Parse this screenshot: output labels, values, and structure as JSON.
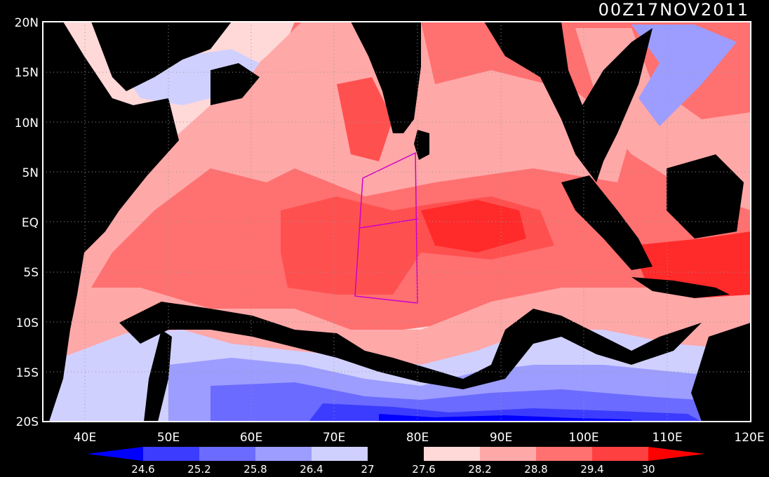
{
  "title": "00Z17NOV2011",
  "lon_labels": [
    "40E",
    "50E",
    "60E",
    "70E",
    "80E",
    "90E",
    "100E",
    "110E",
    "120E"
  ],
  "lat_labels": [
    "20N",
    "15N",
    "10N",
    "5N",
    "EQ",
    "5S",
    "10S",
    "15S",
    "20S"
  ],
  "colorbar": {
    "labels": [
      "24.6",
      "25.2",
      "25.8",
      "26.4",
      "27",
      "27.6",
      "28.2",
      "28.8",
      "29.4",
      "30"
    ],
    "colors": [
      "#0000ff",
      "#3c3cff",
      "#6b6bff",
      "#9d9dff",
      "#d0d0ff",
      "#000000",
      "#ffd8d8",
      "#ffa8a8",
      "#ff7070",
      "#ff4040",
      "#ff0000"
    ]
  },
  "colors": {
    "land": "#000000",
    "frame": "#ffffff",
    "grid": "#999999",
    "box": "#cc00cc",
    "contour": "#e0e0e0"
  }
}
